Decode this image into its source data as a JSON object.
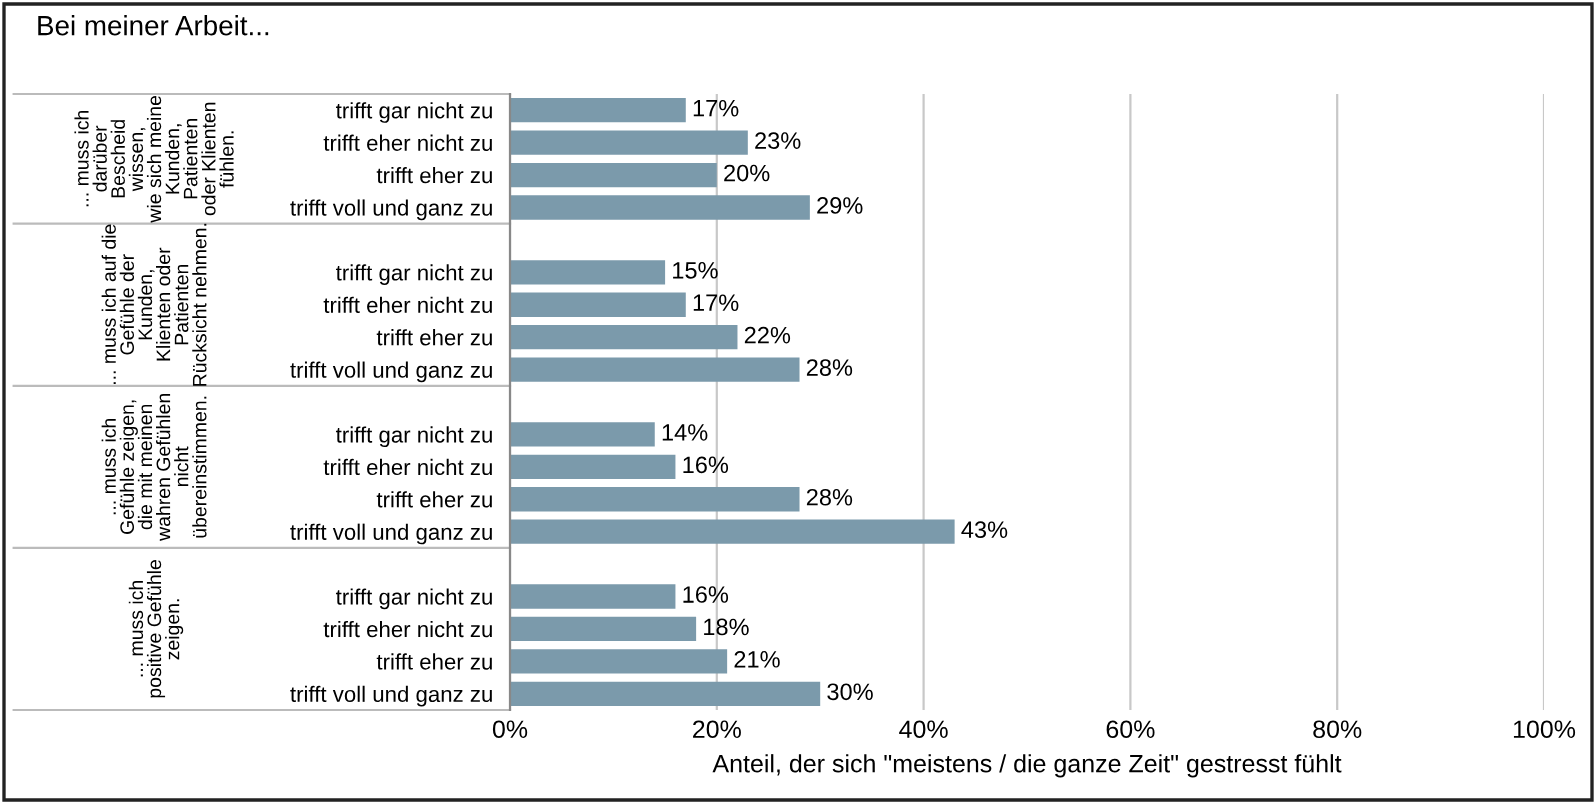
{
  "chart_data": {
    "type": "bar",
    "orientation": "horizontal",
    "title": "Bei meiner Arbeit...",
    "xlabel": "Anteil, der sich \"meistens / die ganze Zeit\" gestresst fühlt",
    "categories": [
      "trifft gar nicht zu",
      "trifft eher nicht zu",
      "trifft eher zu",
      "trifft voll und ganz zu",
      null,
      "trifft gar nicht zu",
      "trifft eher nicht zu",
      "trifft eher zu",
      "trifft voll und ganz zu",
      null,
      "trifft gar nicht zu",
      "trifft eher nicht zu",
      "trifft eher zu",
      "trifft voll und ganz zu",
      null,
      "trifft gar nicht zu",
      "trifft eher nicht zu",
      "trifft eher zu",
      "trifft voll und ganz zu"
    ],
    "values": [
      17,
      23,
      20,
      29,
      null,
      15,
      17,
      22,
      28,
      null,
      14,
      16,
      28,
      43,
      null,
      16,
      18,
      21,
      30
    ],
    "value_labels": [
      "17%",
      "23%",
      "20%",
      "29%",
      null,
      "15%",
      "17%",
      "22%",
      "28%",
      null,
      "14%",
      "16%",
      "28%",
      "43%",
      null,
      "16%",
      "18%",
      "21%",
      "30%"
    ],
    "color": "#7b9aab",
    "xlim": [
      0,
      100
    ],
    "xticks": [
      {
        "value": 0,
        "label": "0%"
      },
      {
        "value": 20,
        "label": "20%"
      },
      {
        "value": 40,
        "label": "40%"
      },
      {
        "value": 60,
        "label": "60%"
      },
      {
        "value": 80,
        "label": "80%"
      },
      {
        "value": 100,
        "label": "100%"
      }
    ],
    "grid": "x",
    "annotations": [
      "... muss ich\ndarüber\nBescheid\nwissen,\nwie sich meine\nKunden,\nPatienten\noder Klienten\nfühlen.",
      "... muss ich auf die\nGefühle der\nKunden,\nKlienten oder\nPatienten\nRücksicht nehmen.",
      "... muss ich\nGefühle zeigen,\ndie mit meinen\nwahren Gefühlen\nnicht\nübereinstimmen.",
      "... muss ich\npositive Gefühle\nzeigen."
    ]
  }
}
